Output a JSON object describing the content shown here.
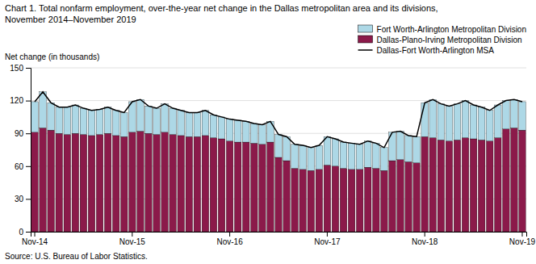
{
  "chart_data": {
    "type": "bar",
    "stacked": true,
    "title": "Chart 1. Total nonfarm employment, over-the-year net change in the Dallas metropolitan area and its divisions,",
    "subtitle": "November 2014–November 2019",
    "ylabel": "Net change (in thousands)",
    "source": "Source: U.S. Bureau of Labor Statistics.",
    "categories": [
      "Nov-14",
      null,
      null,
      null,
      null,
      null,
      null,
      null,
      null,
      null,
      null,
      null,
      "Nov-15",
      null,
      null,
      null,
      null,
      null,
      null,
      null,
      null,
      null,
      null,
      null,
      "Nov-16",
      null,
      null,
      null,
      null,
      null,
      null,
      null,
      null,
      null,
      null,
      null,
      "Nov-17",
      null,
      null,
      null,
      null,
      null,
      null,
      null,
      null,
      null,
      null,
      null,
      "Nov-18",
      null,
      null,
      null,
      null,
      null,
      null,
      null,
      null,
      null,
      null,
      null,
      "Nov-19"
    ],
    "series": [
      {
        "name": "Dallas-Plano-Irving Metropolitan Division",
        "type": "bar",
        "color": "#8b1a4a",
        "values": [
          91,
          95,
          93,
          90,
          89,
          90,
          89,
          88,
          89,
          90,
          88,
          87,
          91,
          92,
          90,
          89,
          91,
          89,
          88,
          87,
          87,
          88,
          86,
          85,
          83,
          82,
          82,
          81,
          80,
          82,
          68,
          65,
          58,
          57,
          56,
          57,
          61,
          60,
          58,
          57,
          57,
          59,
          58,
          56,
          65,
          66,
          64,
          63,
          87,
          86,
          84,
          83,
          84,
          86,
          85,
          84,
          83,
          86,
          94,
          95,
          93
        ]
      },
      {
        "name": "Fort Worth-Arlington Metropolitan Division",
        "type": "bar",
        "color": "#add8e6",
        "values": [
          28,
          33,
          25,
          24,
          25,
          26,
          24,
          23,
          23,
          24,
          23,
          22,
          28,
          29,
          25,
          24,
          26,
          24,
          23,
          22,
          22,
          23,
          21,
          20,
          20,
          20,
          19,
          18,
          18,
          19,
          21,
          22,
          22,
          22,
          21,
          22,
          26,
          25,
          24,
          24,
          23,
          24,
          23,
          21,
          26,
          26,
          24,
          24,
          31,
          35,
          33,
          32,
          33,
          34,
          31,
          30,
          28,
          30,
          26,
          26,
          26
        ]
      },
      {
        "name": "Dallas-Fort Worth-Arlington MSA",
        "type": "line",
        "color": "#000000",
        "values": [
          119,
          128,
          118,
          114,
          114,
          116,
          113,
          111,
          112,
          114,
          111,
          109,
          119,
          121,
          115,
          113,
          117,
          113,
          111,
          109,
          109,
          111,
          107,
          105,
          103,
          102,
          101,
          99,
          98,
          101,
          89,
          87,
          80,
          79,
          77,
          79,
          87,
          85,
          82,
          81,
          80,
          83,
          81,
          77,
          91,
          92,
          88,
          87,
          118,
          121,
          117,
          115,
          117,
          120,
          116,
          114,
          111,
          116,
          120,
          121,
          119
        ]
      }
    ],
    "ylim": [
      0,
      150
    ],
    "yticks": [
      0,
      30,
      60,
      90,
      120,
      150
    ],
    "grid": true,
    "legend": "upper right"
  }
}
